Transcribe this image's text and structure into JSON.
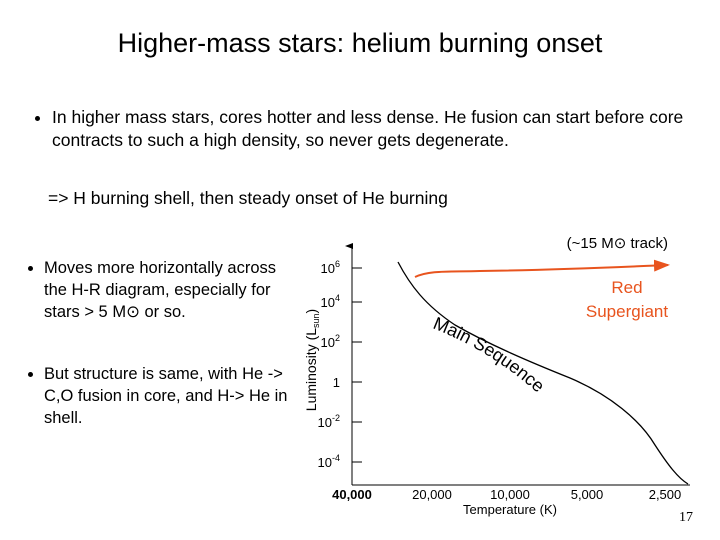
{
  "header": {
    "title": "Higher-mass stars: helium burning onset"
  },
  "bullets": [
    "In higher mass stars, cores hotter and less dense.  He fusion can start before core contracts to such a high density, so never gets degenerate."
  ],
  "note": "=> H burning shell, then steady onset of He burning",
  "side_bullets": [
    "Moves more horizontally across the H-R diagram, especially for stars > 5 M⊙ or so.",
    "But structure is same, with He -> C,O fusion in core, and H-> He in shell."
  ],
  "figure": {
    "track_label": "(~15 M⊙ track)",
    "y_axis": {
      "title": "Luminosity (L",
      "title_sub": "sun",
      "title_end": ")",
      "ticks": [
        {
          "base": "10",
          "exp": "6"
        },
        {
          "base": "10",
          "exp": "4"
        },
        {
          "base": "10",
          "exp": "2"
        },
        {
          "base": "1",
          "exp": ""
        },
        {
          "base": "10",
          "exp": "-2"
        },
        {
          "base": "10",
          "exp": "-4"
        }
      ]
    },
    "x_axis": {
      "title": "Temperature (K)",
      "ticks": [
        "40,000",
        "20,000",
        "10,000",
        "5,000",
        "2,500"
      ]
    },
    "main_sequence": "Main Sequence",
    "supergiant": [
      "Red",
      "Supergiant"
    ]
  },
  "slide_number": "17"
}
